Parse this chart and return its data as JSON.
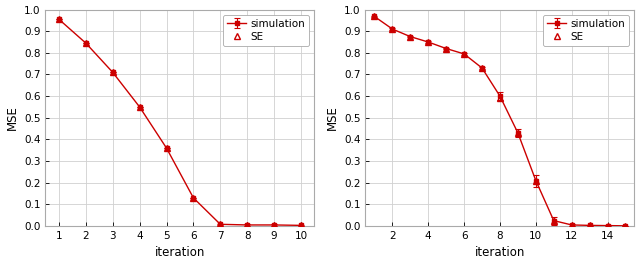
{
  "plot1": {
    "iterations": [
      1,
      2,
      3,
      4,
      5,
      6,
      7,
      8,
      9,
      10
    ],
    "se_values": [
      0.955,
      0.845,
      0.71,
      0.55,
      0.36,
      0.13,
      0.008,
      0.005,
      0.005,
      0.003
    ],
    "sim_values": [
      0.955,
      0.845,
      0.71,
      0.55,
      0.36,
      0.13,
      0.008,
      0.005,
      0.005,
      0.003
    ],
    "sim_errors": [
      0.0,
      0.0,
      0.0,
      0.0,
      0.0,
      0.0,
      0.003,
      0.003,
      0.003,
      0.002
    ],
    "xlim": [
      0.5,
      10.5
    ],
    "ylim": [
      0.0,
      1.0
    ],
    "xticks": [
      1,
      2,
      3,
      4,
      5,
      6,
      7,
      8,
      9,
      10
    ],
    "yticks": [
      0.0,
      0.1,
      0.2,
      0.3,
      0.4,
      0.5,
      0.6,
      0.7,
      0.8,
      0.9,
      1.0
    ],
    "xlabel": "iteration",
    "ylabel": "MSE"
  },
  "plot2": {
    "iterations": [
      1,
      2,
      3,
      4,
      5,
      6,
      7,
      8,
      9,
      10,
      11,
      12,
      13,
      14,
      15
    ],
    "se_values": [
      0.968,
      0.91,
      0.875,
      0.85,
      0.82,
      0.795,
      0.73,
      0.59,
      0.43,
      0.21,
      0.025,
      0.005,
      0.003,
      0.002,
      0.001
    ],
    "sim_values": [
      0.968,
      0.91,
      0.875,
      0.85,
      0.82,
      0.795,
      0.73,
      0.6,
      0.43,
      0.21,
      0.025,
      0.005,
      0.003,
      0.002,
      0.001
    ],
    "sim_errors": [
      0.003,
      0.003,
      0.003,
      0.003,
      0.003,
      0.003,
      0.005,
      0.018,
      0.018,
      0.028,
      0.018,
      0.003,
      0.002,
      0.001,
      0.001
    ],
    "xlim": [
      0.5,
      15.5
    ],
    "ylim": [
      0.0,
      1.0
    ],
    "xticks": [
      2,
      4,
      6,
      8,
      10,
      12,
      14
    ],
    "yticks": [
      0.0,
      0.1,
      0.2,
      0.3,
      0.4,
      0.5,
      0.6,
      0.7,
      0.8,
      0.9,
      1.0
    ],
    "xlabel": "iteration",
    "ylabel": "MSE"
  },
  "line_color": "#cc0000",
  "bg_color": "#ffffff",
  "grid_color": "#d0d0d0",
  "font_size": 8.5,
  "tick_fontsize": 7.5,
  "legend_labels_order": [
    "SE",
    "simulation"
  ]
}
